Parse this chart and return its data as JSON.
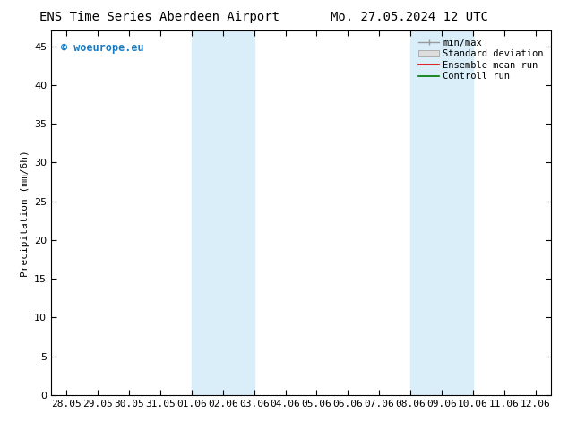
{
  "title_left": "ENS Time Series Aberdeen Airport",
  "title_right": "Mo. 27.05.2024 12 UTC",
  "ylabel": "Precipitation (mm/6h)",
  "ylim": [
    0,
    47
  ],
  "yticks": [
    0,
    5,
    10,
    15,
    20,
    25,
    30,
    35,
    40,
    45
  ],
  "x_labels": [
    "28.05",
    "29.05",
    "30.05",
    "31.05",
    "01.06",
    "02.06",
    "03.06",
    "04.06",
    "05.06",
    "06.06",
    "07.06",
    "08.06",
    "09.06",
    "10.06",
    "11.06",
    "12.06"
  ],
  "x_positions": [
    0,
    1,
    2,
    3,
    4,
    5,
    6,
    7,
    8,
    9,
    10,
    11,
    12,
    13,
    14,
    15
  ],
  "shaded_regions": [
    {
      "xmin": 4.0,
      "xmax": 6.0,
      "color": "#daeef9"
    },
    {
      "xmin": 11.0,
      "xmax": 13.0,
      "color": "#daeef9"
    }
  ],
  "watermark": "© woeurope.eu",
  "watermark_color": "#1a7abf",
  "background_color": "#ffffff",
  "plot_bg_color": "#ffffff",
  "tick_fontsize": 8,
  "title_fontsize": 10,
  "ylabel_fontsize": 8,
  "legend_fontsize": 7.5
}
